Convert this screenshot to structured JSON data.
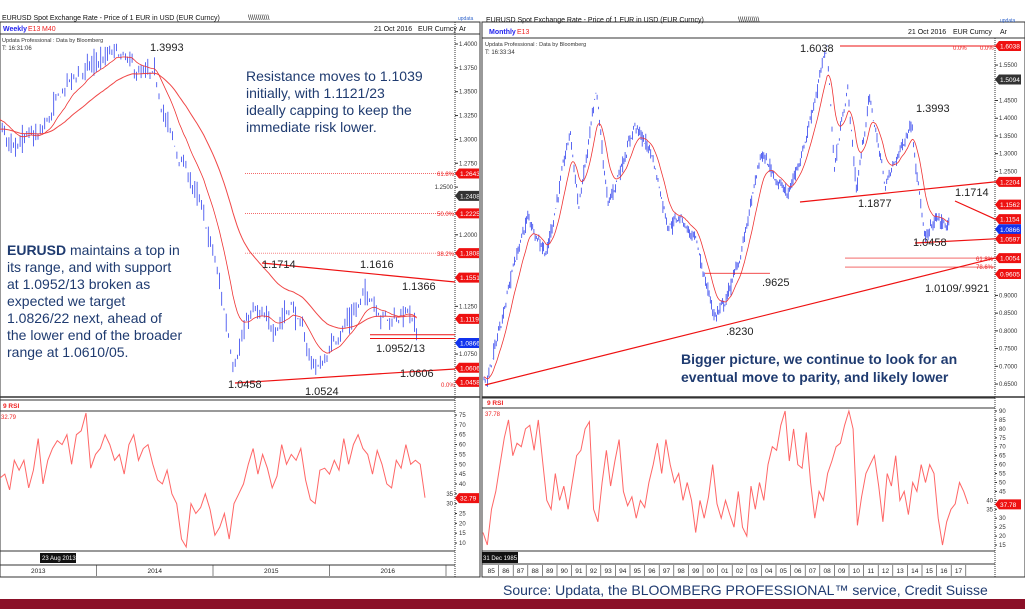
{
  "left_chart": {
    "title": "EURUSD Spot Exchange Rate - Price of 1 EUR in USD (EUR Curncy)",
    "hatch": "\\\\\\\\\\\\\\\\\\\\\\",
    "logo": "updata",
    "period": "Weekly",
    "studies": [
      "E13",
      "M40"
    ],
    "date": "21 Oct 2016",
    "ticker": "EUR Curncy",
    "axis_corner": "Ar",
    "source_line": "Updata Professional : Data by Bloomberg",
    "time": "T: 16:31:06",
    "price_ticks": [
      "1.4000",
      "1.3750",
      "1.3500",
      "1.3250",
      "1.3000",
      "1.2750",
      "1.2500",
      "1.2000",
      "1.1250",
      "1.0750"
    ],
    "price_tags": [
      {
        "value": "1.2643",
        "color": "#ee1111"
      },
      {
        "value": "1.2408",
        "color": "#333333"
      },
      {
        "value": "1.2225",
        "color": "#ee1111"
      },
      {
        "value": "1.1808",
        "color": "#ee1111"
      },
      {
        "value": "1.1551",
        "color": "#ee1111"
      },
      {
        "value": "1.1119",
        "color": "#ee1111"
      },
      {
        "value": "1.0866",
        "color": "#1133ee"
      },
      {
        "value": "1.0606",
        "color": "#ee1111"
      },
      {
        "value": "1.0458",
        "color": "#ee1111"
      }
    ],
    "fib_labels": [
      "61.8%",
      "50.0%",
      "38.2%",
      "0.0%"
    ],
    "level_labels": [
      "1.3993",
      "1.1714",
      "1.1616",
      "1.1366",
      "1.0952/13",
      "1.0458",
      "1.0524",
      "1.0606"
    ],
    "annotation_resistance": [
      "Resistance moves to 1.1039",
      "initially, with 1.1121/23",
      "ideally capping to keep the",
      "immediate risk lower."
    ],
    "annotation_main_bold": "EURUSD",
    "annotation_main": [
      " maintains a top in",
      "its range, and with support",
      "at 1.0952/13 broken as",
      "expected we target",
      "1.0826/22 next, ahead of",
      "the lower end of the broader",
      "range at 1.0610/05."
    ],
    "rsi_label": "9 RSI",
    "rsi_value": "32.79",
    "rsi_ticks": [
      "75",
      "70",
      "65",
      "60",
      "55",
      "50",
      "45",
      "40",
      "35",
      "30",
      "25",
      "20",
      "15",
      "10"
    ],
    "cursor_date": "23 Aug 2013",
    "years": [
      "2013",
      "2014",
      "2015",
      "2016"
    ]
  },
  "right_chart": {
    "title": "EURUSD Spot Exchange Rate - Price of 1 EUR in USD (EUR Curncy)",
    "hatch": "\\\\\\\\\\\\\\\\\\\\\\",
    "logo": "updata",
    "period": "Monthly",
    "studies": [
      "E13"
    ],
    "date": "21 Oct 2016",
    "ticker": "EUR Curncy",
    "axis_corner": "Ar",
    "source_line": "Updata Professional : Data by Bloomberg",
    "time": "T: 16:33:34",
    "price_ticks": [
      "1.5500",
      "1.4500",
      "1.4000",
      "1.3500",
      "1.3000",
      "1.2500",
      "0.9000",
      "0.8500",
      "0.8000",
      "0.7500",
      "0.7000",
      "0.6500"
    ],
    "price_tags": [
      {
        "value": "1.6038",
        "color": "#ee1111"
      },
      {
        "value": "1.5094",
        "color": "#333333"
      },
      {
        "value": "1.2204",
        "color": "#ee1111"
      },
      {
        "value": "1.1562",
        "color": "#ee1111"
      },
      {
        "value": "1.1154",
        "color": "#ee1111"
      },
      {
        "value": "1.0866",
        "color": "#1133ee"
      },
      {
        "value": "1.0597",
        "color": "#ee1111"
      },
      {
        "value": "1.0054",
        "color": "#ee1111"
      },
      {
        "value": "0.9605",
        "color": "#ee1111"
      }
    ],
    "fib_labels": [
      "0.0%",
      "0.0%",
      "61.8%",
      "78.6%"
    ],
    "level_labels": [
      "1.6038",
      "1.3993",
      "1.1714",
      "1.1877",
      "1.0458",
      ".9625",
      ".8230",
      "1.0109/.9921"
    ],
    "annotation": [
      "Bigger picture, we continue to look for an",
      "eventual move to parity, and likely lower"
    ],
    "rsi_label": "9 RSI",
    "rsi_value": "37.78",
    "rsi_ticks": [
      "90",
      "85",
      "80",
      "75",
      "70",
      "65",
      "60",
      "55",
      "50",
      "45",
      "40",
      "35",
      "30",
      "25",
      "20",
      "15"
    ],
    "cursor_date": "31 Dec 1985",
    "years": [
      "85",
      "86",
      "87",
      "88",
      "89",
      "90",
      "91",
      "92",
      "93",
      "94",
      "95",
      "96",
      "97",
      "98",
      "99",
      "00",
      "01",
      "02",
      "03",
      "04",
      "05",
      "06",
      "07",
      "08",
      "09",
      "10",
      "11",
      "12",
      "13",
      "14",
      "15",
      "16",
      "17"
    ]
  },
  "footer": {
    "source": "Source: Updata, the BLOOMBERG PROFESSIONAL™ service, Credit Suisse"
  },
  "colors": {
    "price_bars": "#3344ee",
    "moving_average": "#ee3333",
    "rsi": "#ff6666",
    "trendline": "#ee1111",
    "footer_band": "#8b1028",
    "text": "#1f3b70"
  },
  "chart_data": [
    {
      "type": "line",
      "title": "EURUSD Spot Exchange Rate - Price of 1 EUR in USD (EUR Curncy) - Weekly",
      "x": [
        "2012-09",
        "2013-01",
        "2013-04",
        "2013-07",
        "2013-10",
        "2014-01",
        "2014-03",
        "2014-05",
        "2014-07",
        "2014-09",
        "2014-11",
        "2015-01",
        "2015-03",
        "2015-05",
        "2015-07",
        "2015-09",
        "2015-11",
        "2015-12",
        "2016-02",
        "2016-05",
        "2016-07",
        "2016-09",
        "2016-10"
      ],
      "series": [
        {
          "values": [
            1.29,
            1.33,
            1.3,
            1.3,
            1.36,
            1.38,
            1.39,
            1.37,
            1.36,
            1.29,
            1.25,
            1.18,
            1.07,
            1.12,
            1.1,
            1.13,
            1.07,
            1.06,
            1.1,
            1.14,
            1.11,
            1.12,
            1.09
          ]
        }
      ],
      "rsi": [
        43,
        45,
        37,
        52,
        47,
        52,
        38,
        47,
        63,
        40,
        52,
        58,
        62,
        60,
        65,
        50,
        65,
        67,
        76,
        48,
        55,
        58,
        65,
        60,
        52,
        55,
        45,
        60,
        65,
        52,
        58,
        60,
        50,
        42,
        40,
        47,
        35,
        30,
        12,
        8,
        30,
        25,
        28,
        35,
        27,
        14,
        18,
        25,
        12,
        30,
        35,
        40,
        50,
        58,
        45,
        55,
        48,
        38,
        44,
        60,
        50,
        55,
        52,
        58,
        42,
        32,
        30,
        47,
        48,
        45,
        52,
        47,
        63,
        50,
        60,
        65,
        58,
        55,
        45,
        57,
        50,
        40,
        38,
        52,
        48,
        60,
        50,
        52,
        50,
        33
      ],
      "ylim": [
        1.04,
        1.41
      ],
      "rsi_ylim": [
        5,
        78
      ]
    },
    {
      "type": "line",
      "title": "EURUSD Spot Exchange Rate - Price of 1 EUR in USD (EUR Curncy) - Monthly",
      "x": [
        1985,
        1985.2,
        1987,
        1988,
        1989.3,
        1990.9,
        1991.5,
        1992.7,
        1993.5,
        1995.3,
        1996.5,
        1997.6,
        1998.5,
        1999.5,
        2000.8,
        2001.5,
        2002.5,
        2004.0,
        2005.8,
        2006.9,
        2008.5,
        2009.0,
        2009.9,
        2010.5,
        2011.4,
        2012.5,
        2014.3,
        2015.2,
        2016.0,
        2016.8
      ],
      "series": [
        {
          "values": [
            0.68,
            0.65,
            0.98,
            1.12,
            1.02,
            1.36,
            1.15,
            1.47,
            1.15,
            1.38,
            1.3,
            1.1,
            1.12,
            1.05,
            0.84,
            0.88,
            1.0,
            1.3,
            1.18,
            1.32,
            1.6038,
            1.26,
            1.49,
            1.2,
            1.46,
            1.21,
            1.39,
            1.05,
            1.12,
            1.09
          ]
        }
      ],
      "rsi": [
        22,
        15,
        35,
        45,
        60,
        75,
        85,
        65,
        72,
        70,
        80,
        82,
        68,
        85,
        62,
        40,
        35,
        55,
        40,
        48,
        35,
        50,
        65,
        68,
        80,
        84,
        35,
        28,
        50,
        68,
        48,
        62,
        74,
        45,
        37,
        42,
        30,
        40,
        36,
        50,
        60,
        72,
        55,
        74,
        60,
        50,
        55,
        40,
        50,
        40,
        22,
        40,
        30,
        42,
        60,
        38,
        30,
        40,
        32,
        25,
        45,
        25,
        20,
        48,
        35,
        50,
        40,
        60,
        70,
        68,
        82,
        90,
        62,
        80,
        60,
        58,
        78,
        50,
        30,
        45,
        40,
        55,
        62,
        70,
        72,
        82,
        90,
        80,
        26,
        42,
        55,
        60,
        65,
        48,
        28,
        55,
        48,
        65,
        40,
        45,
        32,
        50,
        45,
        60,
        50,
        60,
        55,
        30,
        15,
        28,
        35,
        38,
        50,
        45,
        38
      ],
      "ylim": [
        0.64,
        1.62
      ],
      "rsi_ylim": [
        12,
        92
      ]
    }
  ]
}
